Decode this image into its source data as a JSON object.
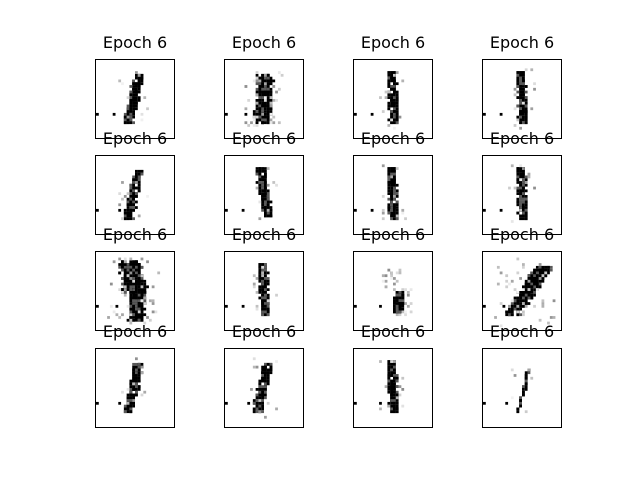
{
  "panels": [
    {
      "title": "Epoch 6",
      "digit": "stroke-thin"
    },
    {
      "title": "Epoch 6",
      "digit": "stroke-fuzzy"
    },
    {
      "title": "Epoch 6",
      "digit": "stroke-straight"
    },
    {
      "title": "Epoch 6",
      "digit": "stroke-straight"
    },
    {
      "title": "Epoch 6",
      "digit": "stroke-thin"
    },
    {
      "title": "Epoch 6",
      "digit": "stroke-slant"
    },
    {
      "title": "Epoch 6",
      "digit": "stroke-straight"
    },
    {
      "title": "Epoch 6",
      "digit": "stroke-straight"
    },
    {
      "title": "Epoch 6",
      "digit": "blob-messy"
    },
    {
      "title": "Epoch 6",
      "digit": "stroke-straight"
    },
    {
      "title": "Epoch 6",
      "digit": "sparse-two"
    },
    {
      "title": "Epoch 6",
      "digit": "diagonal-messy"
    },
    {
      "title": "Epoch 6",
      "digit": "stroke-thin"
    },
    {
      "title": "Epoch 6",
      "digit": "stroke-thin"
    },
    {
      "title": "Epoch 6",
      "digit": "stroke-straight"
    },
    {
      "title": "Epoch 6",
      "digit": "stroke-faint"
    }
  ],
  "colors": {
    "ink": "#000000",
    "paper": "#ffffff",
    "frame": "#000000"
  }
}
